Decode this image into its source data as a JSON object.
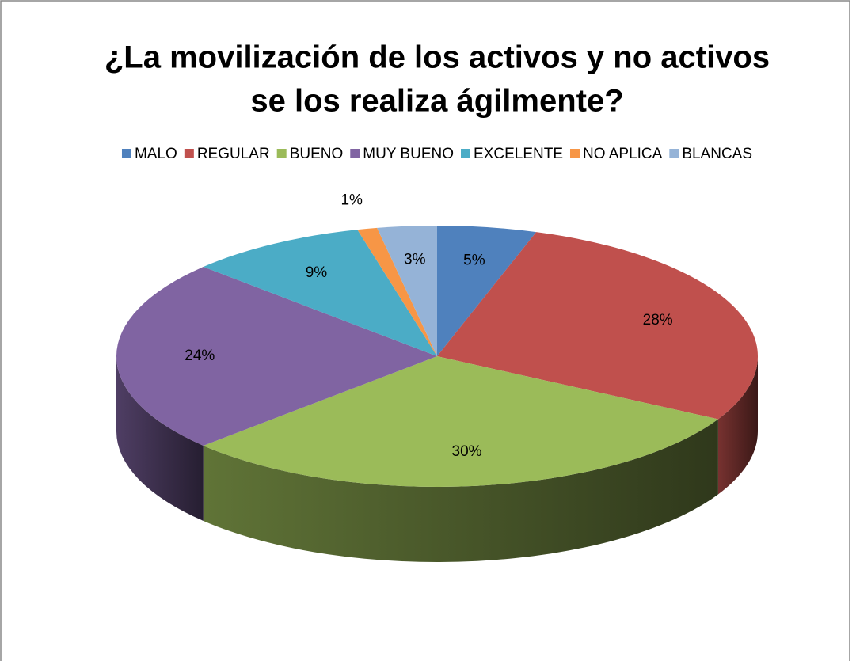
{
  "chart_data": {
    "type": "pie",
    "title": [
      "¿La movilización de los activos y no activos",
      "se los realiza ágilmente?"
    ],
    "categories": [
      "MALO",
      "REGULAR",
      "BUENO",
      "MUY BUENO",
      "EXCELENTE",
      "NO APLICA",
      "BLANCAS"
    ],
    "values": [
      5,
      28,
      30,
      24,
      9,
      1,
      3
    ],
    "value_labels": [
      "5%",
      "28%",
      "30%",
      "24%",
      "9%",
      "1%",
      "3%"
    ],
    "colors": [
      "#4f81bd",
      "#c0504d",
      "#9bbb59",
      "#8064a2",
      "#4bacc6",
      "#f79646",
      "#95b3d7"
    ],
    "legend": "top"
  }
}
